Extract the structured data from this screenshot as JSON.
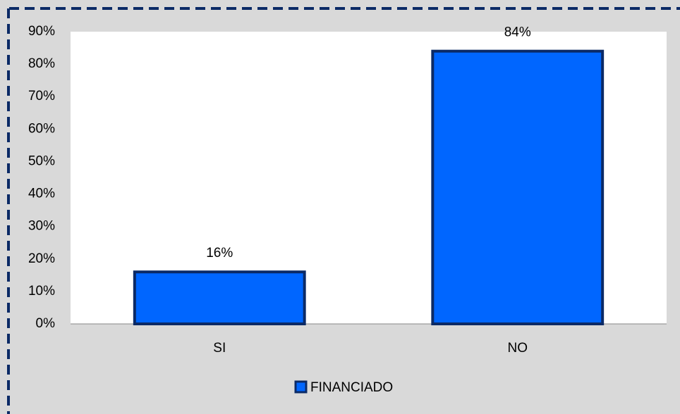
{
  "chart_data": {
    "type": "bar",
    "categories": [
      "SI",
      "NO"
    ],
    "series": [
      {
        "name": "FINANCIADO",
        "color": "#0066ff",
        "edge": "#0b2a66",
        "values": [
          16,
          84
        ],
        "value_labels": [
          "16%",
          "84%"
        ]
      }
    ],
    "ylim": [
      0,
      90
    ],
    "yticks": [
      {
        "value": 0,
        "label": "0%"
      },
      {
        "value": 10,
        "label": "10%"
      },
      {
        "value": 20,
        "label": "20%"
      },
      {
        "value": 30,
        "label": "30%"
      },
      {
        "value": 40,
        "label": "40%"
      },
      {
        "value": 50,
        "label": "50%"
      },
      {
        "value": 60,
        "label": "60%"
      },
      {
        "value": 70,
        "label": "70%"
      },
      {
        "value": 80,
        "label": "80%"
      },
      {
        "value": 90,
        "label": "90%"
      }
    ],
    "grid": false,
    "legend": "bottom"
  }
}
